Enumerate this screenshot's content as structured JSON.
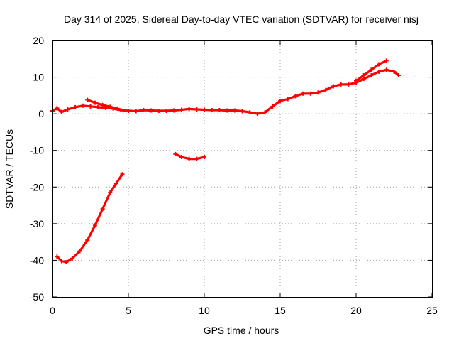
{
  "chart_data": {
    "type": "scatter",
    "title": "Day 314 of 2025, Sidereal Day-to-day VTEC variation (SDTVAR) for receiver nisj",
    "xlabel": "GPS time / hours",
    "ylabel": "SDTVAR / TECUs",
    "xlim": [
      0,
      25
    ],
    "ylim": [
      -50,
      20
    ],
    "xticks": [
      0,
      5,
      10,
      15,
      20,
      25
    ],
    "yticks": [
      -50,
      -40,
      -30,
      -20,
      -10,
      0,
      10,
      20
    ],
    "grid": true,
    "series": [
      {
        "name": "main",
        "color": "#ff0000",
        "x": [
          0.0,
          0.3,
          0.6,
          1.0,
          1.5,
          2.0,
          2.5,
          3.0,
          3.5,
          4.0,
          4.5,
          5.0,
          5.5,
          6.0,
          6.5,
          7.0,
          7.5,
          8.0,
          8.5,
          9.0,
          9.5,
          10.0,
          10.5,
          11.0,
          11.5,
          12.0,
          12.5,
          13.0,
          13.5,
          14.0,
          14.5,
          15.0,
          15.5,
          16.0,
          16.5,
          17.0,
          17.5,
          18.0,
          18.5,
          19.0,
          19.5,
          20.0,
          20.5,
          21.0,
          21.5,
          22.0,
          22.5,
          22.8
        ],
        "y": [
          0.8,
          1.5,
          0.5,
          1.2,
          1.8,
          2.2,
          2.0,
          1.8,
          1.6,
          1.4,
          1.0,
          0.8,
          0.7,
          1.0,
          0.9,
          0.8,
          0.8,
          0.9,
          1.1,
          1.3,
          1.2,
          1.1,
          1.0,
          1.0,
          0.9,
          0.9,
          0.7,
          0.4,
          0.0,
          0.4,
          2.0,
          3.5,
          4.0,
          4.8,
          5.5,
          5.5,
          5.8,
          6.5,
          7.5,
          8.0,
          8.0,
          8.5,
          9.5,
          10.5,
          11.5,
          12.0,
          11.5,
          10.5
        ]
      },
      {
        "name": "upper-branch",
        "color": "#ff0000",
        "x": [
          20.0,
          20.5,
          21.0,
          21.5,
          22.0
        ],
        "y": [
          9.0,
          10.5,
          12.0,
          13.5,
          14.5
        ]
      },
      {
        "name": "hump",
        "color": "#ff0000",
        "x": [
          2.3,
          2.8,
          3.3,
          3.8,
          4.3
        ],
        "y": [
          3.8,
          3.0,
          2.4,
          1.9,
          1.4
        ]
      },
      {
        "name": "low-segment",
        "color": "#ff0000",
        "x": [
          0.3,
          0.6,
          0.9,
          1.3,
          1.8,
          2.3,
          2.8,
          3.3,
          3.8,
          4.2,
          4.6
        ],
        "y": [
          -39.0,
          -40.2,
          -40.5,
          -39.5,
          -37.5,
          -34.5,
          -30.5,
          -26.0,
          -21.5,
          -19.0,
          -16.5
        ]
      },
      {
        "name": "mid-segment",
        "color": "#ff0000",
        "x": [
          8.1,
          8.5,
          9.0,
          9.5,
          10.0
        ],
        "y": [
          -11.0,
          -11.8,
          -12.3,
          -12.3,
          -11.8
        ]
      }
    ]
  }
}
